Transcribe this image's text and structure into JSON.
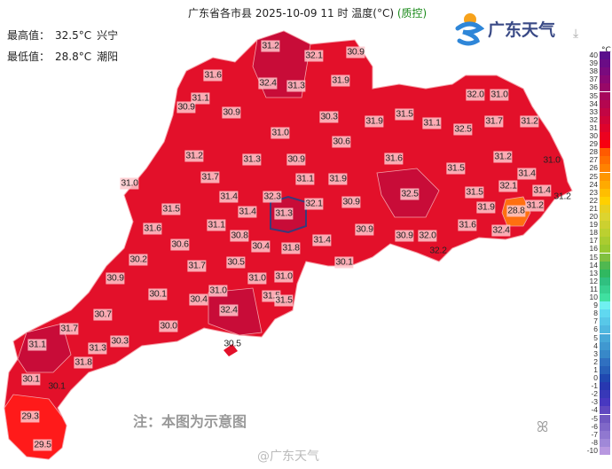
{
  "header": {
    "title": "广东省各市县 2025-10-09 11 时 温度(°C)",
    "qc_label": "(质控)",
    "max_label": "最高值：",
    "max_value": "32.5°C",
    "max_place": "兴宁",
    "min_label": "最低值：",
    "min_value": "28.8°C",
    "min_place": "潮阳",
    "logo_text": "广东天气",
    "download_icon": "download-icon"
  },
  "legend": {
    "unit": "°C",
    "labels": [
      "40",
      "39",
      "38",
      "37",
      "36",
      "35",
      "34",
      "33",
      "32",
      "31",
      "30",
      "29",
      "28",
      "27",
      "26",
      "25",
      "24",
      "23",
      "22",
      "21",
      "20",
      "19",
      "18",
      "17",
      "16",
      "15",
      "14",
      "13",
      "12",
      "11",
      "10",
      "9",
      "8",
      "7",
      "6",
      "5",
      "4",
      "3",
      "2",
      "1",
      "0",
      "-1",
      "-2",
      "-3",
      "-4",
      "-5",
      "-6",
      "-7",
      "-8",
      "-10"
    ],
    "colors": [
      "#5a0f8c",
      "#6a0c86",
      "#7a0a7e",
      "#8a0874",
      "#980868",
      "#a6075c",
      "#b40650",
      "#c20544",
      "#d00438",
      "#de032c",
      "#ec0220",
      "#f80010",
      "#ff5a00",
      "#ff6e00",
      "#ff8200",
      "#ff9600",
      "#ffaa00",
      "#ffbe00",
      "#ffd000",
      "#e8d020",
      "#dcd430",
      "#ccd030",
      "#bcd030",
      "#aacc30",
      "#98c830",
      "#80c040",
      "#50b850",
      "#30b860",
      "#30c080",
      "#38d090",
      "#40e0a0",
      "#70f0f0",
      "#60d8f0",
      "#58c8e8",
      "#50b8e0",
      "#48a8d8",
      "#4098d0",
      "#3888c8",
      "#3070c0",
      "#2860b8",
      "#2048b0",
      "#2838b0",
      "#3838b8",
      "#4838c0",
      "#6048c0",
      "#7058c0",
      "#8068c8",
      "#9078d0",
      "#a088d8",
      "#b898e0"
    ]
  },
  "map": {
    "colors": {
      "main": "#e3102a",
      "dark": "#c80c38",
      "bright": "#ff1a1a",
      "orange": "#ff7010",
      "border": "#f5a0a8",
      "highlight": "#3a3a7a"
    },
    "values": [
      "31.2",
      "32.1",
      "30.9",
      "31.6",
      "32.4",
      "31.3",
      "31.9",
      "31.1",
      "30.9",
      "30.9",
      "30.3",
      "31.9",
      "31.5",
      "31.1",
      "32.5",
      "32.0",
      "31.0",
      "31.7",
      "31.2",
      "31.0",
      "30.6",
      "31.2",
      "31.3",
      "30.9",
      "31.6",
      "31.5",
      "31.2",
      "31.0",
      "31.4",
      "31.7",
      "31.1",
      "31.9",
      "32.5",
      "31.5",
      "32.1",
      "31.4",
      "31.2",
      "31.0",
      "31.4",
      "32.3",
      "32.1",
      "30.9",
      "31.9",
      "31.2",
      "28.8",
      "31.5",
      "31.4",
      "31.3",
      "31.1",
      "31.6",
      "30.9",
      "31.6",
      "32.4",
      "30.9",
      "32.0",
      "30.8",
      "31.4",
      "30.6",
      "30.4",
      "31.8",
      "32.2",
      "30.2",
      "30.5",
      "30.1",
      "31.7",
      "30.9",
      "31.0",
      "31.0",
      "31.0",
      "30.1",
      "30.4",
      "31.5",
      "31.5",
      "32.4",
      "30.7",
      "30.0",
      "31.7",
      "30.3",
      "31.1",
      "31.3",
      "30.5",
      "31.8",
      "30.1",
      "30.1",
      "29.3",
      "29.5"
    ]
  },
  "footer": {
    "note": "注：本图为示意图",
    "watermark": "@广东天气"
  }
}
